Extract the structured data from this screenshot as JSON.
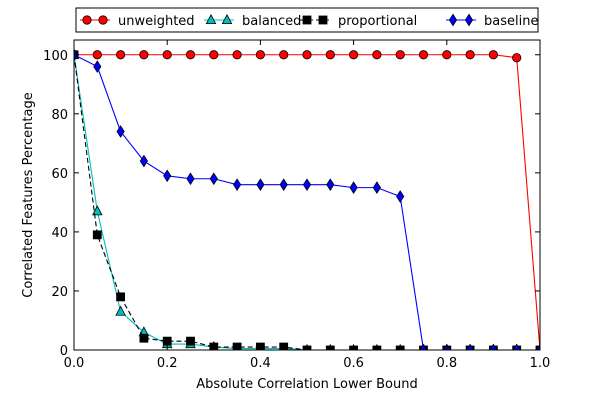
{
  "chart_data": {
    "type": "line",
    "xlabel": "Absolute Correlation Lower Bound",
    "ylabel": "Correlated Features Percentage",
    "xlim": [
      0,
      1
    ],
    "ylim": [
      0,
      105
    ],
    "xticks": [
      0.0,
      0.2,
      0.4,
      0.6,
      0.8,
      1.0
    ],
    "xtick_labels": [
      "0.0",
      "0.2",
      "0.4",
      "0.6",
      "0.8",
      "1.0"
    ],
    "yticks": [
      0,
      20,
      40,
      60,
      80,
      100
    ],
    "ytick_labels": [
      "0",
      "20",
      "40",
      "60",
      "80",
      "100"
    ],
    "grid": false,
    "legend_position": "top",
    "series": [
      {
        "name": "unweighted",
        "color": "#ff0000",
        "marker": "circle",
        "line_style": "solid",
        "x": [
          0,
          0.05,
          0.1,
          0.15,
          0.2,
          0.25,
          0.3,
          0.35,
          0.4,
          0.45,
          0.5,
          0.55,
          0.6,
          0.65,
          0.7,
          0.75,
          0.8,
          0.85,
          0.9,
          0.95,
          1.0
        ],
        "y": [
          100,
          100,
          100,
          100,
          100,
          100,
          100,
          100,
          100,
          100,
          100,
          100,
          100,
          100,
          100,
          100,
          100,
          100,
          100,
          99,
          0
        ]
      },
      {
        "name": "balanced",
        "color": "#00bfbf",
        "marker": "triangle",
        "line_style": "solid",
        "x": [
          0,
          0.05,
          0.1,
          0.15,
          0.2,
          0.25,
          0.3,
          0.35,
          0.4,
          0.45,
          0.5,
          0.55,
          0.6,
          0.65,
          0.7,
          0.75,
          0.8,
          0.85,
          0.9,
          0.95,
          1.0
        ],
        "y": [
          100,
          47,
          13,
          6,
          2,
          2,
          1,
          0.5,
          0.5,
          0.5,
          0,
          0,
          0,
          0,
          0,
          0,
          0,
          0,
          0,
          0,
          0
        ]
      },
      {
        "name": "proportional",
        "color": "#000000",
        "marker": "square",
        "line_style": "dashed",
        "x": [
          0,
          0.05,
          0.1,
          0.15,
          0.2,
          0.25,
          0.3,
          0.35,
          0.4,
          0.45,
          0.5,
          0.55,
          0.6,
          0.65,
          0.7,
          0.75,
          0.8,
          0.85,
          0.9,
          0.95,
          1.0
        ],
        "y": [
          100,
          39,
          18,
          4,
          3,
          3,
          1,
          1,
          1,
          1,
          0,
          0,
          0,
          0,
          0,
          0,
          0,
          0,
          0,
          0,
          0
        ]
      },
      {
        "name": "baseline",
        "color": "#0000ff",
        "marker": "diamond",
        "line_style": "solid",
        "x": [
          0,
          0.05,
          0.1,
          0.15,
          0.2,
          0.25,
          0.3,
          0.35,
          0.4,
          0.45,
          0.5,
          0.55,
          0.6,
          0.65,
          0.7,
          0.75,
          0.8,
          0.85,
          0.9,
          0.95,
          1.0
        ],
        "y": [
          100,
          96,
          74,
          64,
          59,
          58,
          58,
          56,
          56,
          56,
          56,
          56,
          55,
          55,
          52,
          0,
          0,
          0,
          0,
          0,
          0
        ]
      }
    ]
  }
}
